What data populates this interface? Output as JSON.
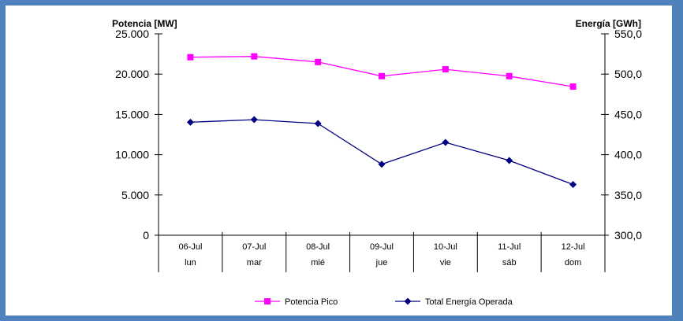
{
  "chart_data": {
    "type": "line",
    "ylabel_left": "Potencia [MW]",
    "ylabel_right": "Energía [GWh]",
    "categories": [
      {
        "date": "06-Jul",
        "day": "lun"
      },
      {
        "date": "07-Jul",
        "day": "mar"
      },
      {
        "date": "08-Jul",
        "day": "mié"
      },
      {
        "date": "09-Jul",
        "day": "jue"
      },
      {
        "date": "10-Jul",
        "day": "vie"
      },
      {
        "date": "11-Jul",
        "day": "sáb"
      },
      {
        "date": "12-Jul",
        "day": "dom"
      }
    ],
    "y_left": {
      "min": 0,
      "max": 25000,
      "ticks": [
        "0",
        "5.000",
        "10.000",
        "15.000",
        "20.000",
        "25.000"
      ]
    },
    "y_right": {
      "min": 300,
      "max": 550,
      "ticks": [
        "300,0",
        "350,0",
        "400,0",
        "450,0",
        "500,0",
        "550,0"
      ]
    },
    "series": [
      {
        "name": "Potencia Pico",
        "axis": "left",
        "color": "#ff00ff",
        "marker": "square",
        "values": [
          22100,
          22200,
          21500,
          19750,
          20600,
          19750,
          18450
        ]
      },
      {
        "name": "Total Energía Operada",
        "axis": "right",
        "color": "#000080",
        "marker": "diamond",
        "values": [
          440.3,
          443.5,
          438.7,
          388.1,
          415.2,
          392.8,
          363.0
        ]
      }
    ],
    "legend_position": "bottom",
    "grid": false
  },
  "colors": {
    "background_border": "#4f81bd",
    "plot_background": "#ffffff"
  }
}
